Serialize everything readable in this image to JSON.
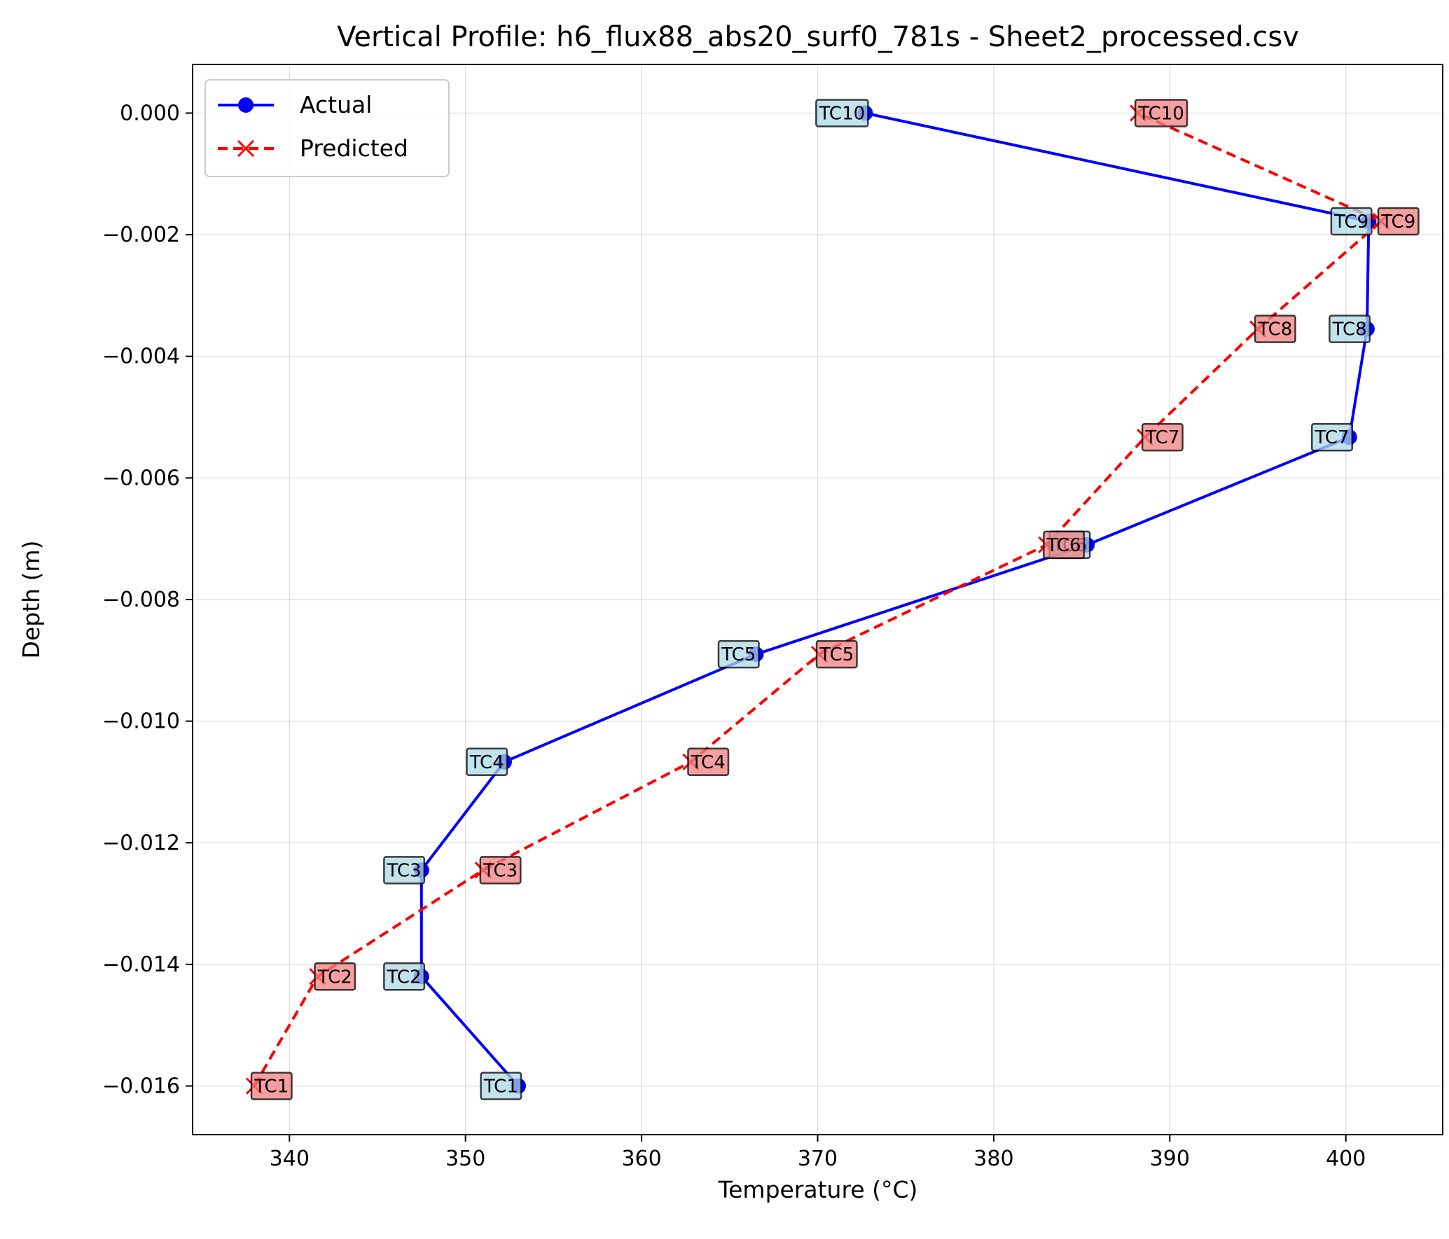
{
  "chart_data": {
    "type": "line",
    "title": "Vertical Profile: h6_flux88_abs20_surf0_781s - Sheet2_processed.csv",
    "xlabel": "Temperature (°C)",
    "ylabel": "Depth (m)",
    "xlim": [
      334.5,
      405.5
    ],
    "ylim": [
      -0.0168,
      0.0008
    ],
    "xticks": [
      340,
      350,
      360,
      370,
      380,
      390,
      400
    ],
    "xtick_labels": [
      "340",
      "350",
      "360",
      "370",
      "380",
      "390",
      "400"
    ],
    "yticks": [
      0.0,
      -0.002,
      -0.004,
      -0.006,
      -0.008,
      -0.01,
      -0.012,
      -0.014,
      -0.016
    ],
    "ytick_labels": [
      "0.000",
      "−0.002",
      "−0.004",
      "−0.006",
      "−0.008",
      "−0.010",
      "−0.012",
      "−0.014",
      "−0.016"
    ],
    "grid": true,
    "legend": "top-left",
    "series": [
      {
        "name": "Actual",
        "color": "#0000ff",
        "line": "solid",
        "marker": "circle",
        "label_bg": "#add8e6",
        "points": [
          {
            "label": "TC1",
            "x": 353.0,
            "y": -0.016
          },
          {
            "label": "TC2",
            "x": 347.5,
            "y": -0.0142
          },
          {
            "label": "TC3",
            "x": 347.5,
            "y": -0.01245
          },
          {
            "label": "TC4",
            "x": 352.2,
            "y": -0.01067
          },
          {
            "label": "TC5",
            "x": 366.5,
            "y": -0.0089
          },
          {
            "label": "TC6",
            "x": 385.3,
            "y": -0.0071
          },
          {
            "label": "TC7",
            "x": 400.2,
            "y": -0.00533
          },
          {
            "label": "TC8",
            "x": 401.2,
            "y": -0.00355
          },
          {
            "label": "TC9",
            "x": 401.3,
            "y": -0.00178
          },
          {
            "label": "TC10",
            "x": 372.7,
            "y": 0.0
          }
        ]
      },
      {
        "name": "Predicted",
        "color": "#ff0000",
        "line": "dashed",
        "marker": "x",
        "label_bg": "#f08080",
        "points": [
          {
            "label": "TC1",
            "x": 338.0,
            "y": -0.016
          },
          {
            "label": "TC2",
            "x": 341.6,
            "y": -0.0142
          },
          {
            "label": "TC3",
            "x": 351.0,
            "y": -0.01245
          },
          {
            "label": "TC4",
            "x": 362.8,
            "y": -0.01067
          },
          {
            "label": "TC5",
            "x": 370.1,
            "y": -0.0089
          },
          {
            "label": "TC6",
            "x": 383.0,
            "y": -0.0071
          },
          {
            "label": "TC7",
            "x": 388.6,
            "y": -0.00533
          },
          {
            "label": "TC8",
            "x": 395.0,
            "y": -0.00355
          },
          {
            "label": "TC9",
            "x": 402.0,
            "y": -0.00178
          },
          {
            "label": "TC10",
            "x": 388.2,
            "y": 0.0
          }
        ]
      }
    ]
  }
}
